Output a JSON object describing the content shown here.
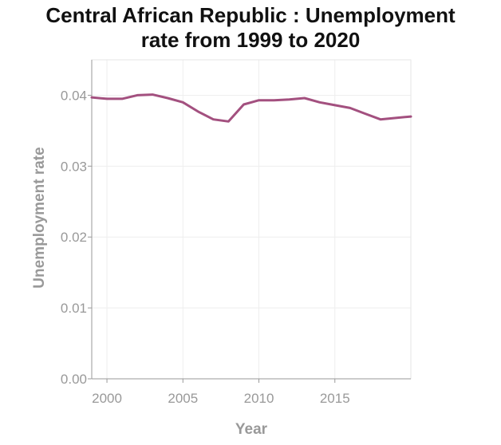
{
  "chart_data": {
    "type": "line",
    "title": [
      "Central African Republic : Unemployment",
      "rate from 1999 to 2020"
    ],
    "xlabel": "Year",
    "ylabel": "Unemployment rate",
    "xlim": [
      1999,
      2020
    ],
    "ylim": [
      0,
      0.045
    ],
    "xticks": [
      2000,
      2005,
      2010,
      2015
    ],
    "xtick_labels": [
      "2000",
      "2005",
      "2010",
      "2015"
    ],
    "yticks": [
      0,
      0.01,
      0.02,
      0.03,
      0.04
    ],
    "ytick_labels": [
      "0.00",
      "0.01",
      "0.02",
      "0.03",
      "0.04"
    ],
    "grid": true,
    "legend": "none",
    "series": [
      {
        "color": "#a3507f",
        "x": [
          1999,
          2000,
          2001,
          2002,
          2003,
          2004,
          2005,
          2006,
          2007,
          2008,
          2009,
          2010,
          2011,
          2012,
          2013,
          2014,
          2015,
          2016,
          2017,
          2018,
          2019,
          2020
        ],
        "y": [
          0.0397,
          0.0395,
          0.0395,
          0.04,
          0.0401,
          0.0396,
          0.039,
          0.0377,
          0.0366,
          0.0363,
          0.0387,
          0.0393,
          0.0393,
          0.0394,
          0.0396,
          0.039,
          0.0386,
          0.0382,
          0.0374,
          0.0366,
          0.0368,
          0.037
        ]
      }
    ]
  }
}
